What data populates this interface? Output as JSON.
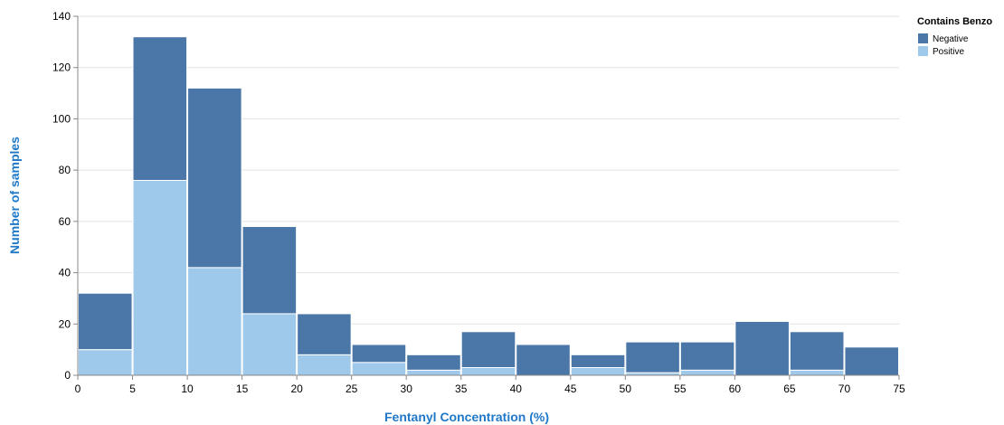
{
  "chart_data": {
    "type": "bar",
    "stacked": true,
    "bin_width": 5,
    "x_bins_start": [
      0,
      5,
      10,
      15,
      20,
      25,
      30,
      35,
      40,
      45,
      50,
      55,
      60,
      65,
      70
    ],
    "series": [
      {
        "name": "Positive",
        "color": "#9fc9ea",
        "values": [
          10,
          76,
          42,
          24,
          8,
          5,
          2,
          3,
          0,
          3,
          1,
          2,
          0,
          2,
          0
        ]
      },
      {
        "name": "Negative",
        "color": "#4a76a8",
        "values": [
          22,
          56,
          70,
          34,
          16,
          7,
          6,
          14,
          12,
          5,
          12,
          11,
          21,
          15,
          11
        ]
      }
    ],
    "xlabel": "Fentanyl Concentration (%)",
    "ylabel": "Number of samples",
    "xlim": [
      0,
      75
    ],
    "ylim": [
      0,
      140
    ],
    "x_ticks": [
      0,
      5,
      10,
      15,
      20,
      25,
      30,
      35,
      40,
      45,
      50,
      55,
      60,
      65,
      70,
      75
    ],
    "y_ticks": [
      0,
      20,
      40,
      60,
      80,
      100,
      120,
      140
    ],
    "grid": true,
    "legend": {
      "title": "Contains Benzo",
      "placement": "top-right",
      "entries": [
        {
          "label": "Negative",
          "color": "#4a76a8"
        },
        {
          "label": "Positive",
          "color": "#9fc9ea"
        }
      ]
    }
  }
}
